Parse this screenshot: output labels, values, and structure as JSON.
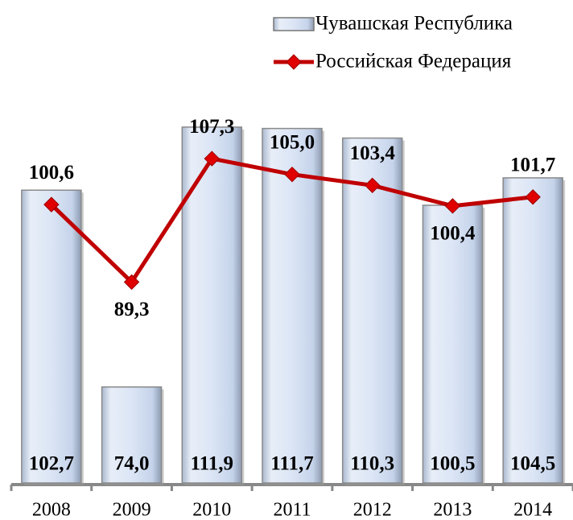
{
  "chart_data": {
    "type": "bar_line",
    "categories": [
      "2008",
      "2009",
      "2010",
      "2011",
      "2012",
      "2013",
      "2014"
    ],
    "series": [
      {
        "name": "Чувашская Республика",
        "type": "bar",
        "color": "#dbe5f5",
        "values": [
          102.7,
          74.0,
          111.9,
          111.7,
          110.3,
          100.5,
          104.5
        ],
        "value_labels": [
          "102,7",
          "74,0",
          "111,9",
          "111,7",
          "110,3",
          "100,5",
          "104,5"
        ]
      },
      {
        "name": "Российская Федерация",
        "type": "line",
        "color": "#c00000",
        "values": [
          100.6,
          89.3,
          107.3,
          105.0,
          103.4,
          100.4,
          101.7
        ],
        "value_labels": [
          "100,6",
          "89,3",
          "107,3",
          "105,0",
          "103,4",
          "100,4",
          "101,7"
        ]
      }
    ],
    "ylim": [
      60,
      114
    ],
    "legend": "top-right"
  }
}
